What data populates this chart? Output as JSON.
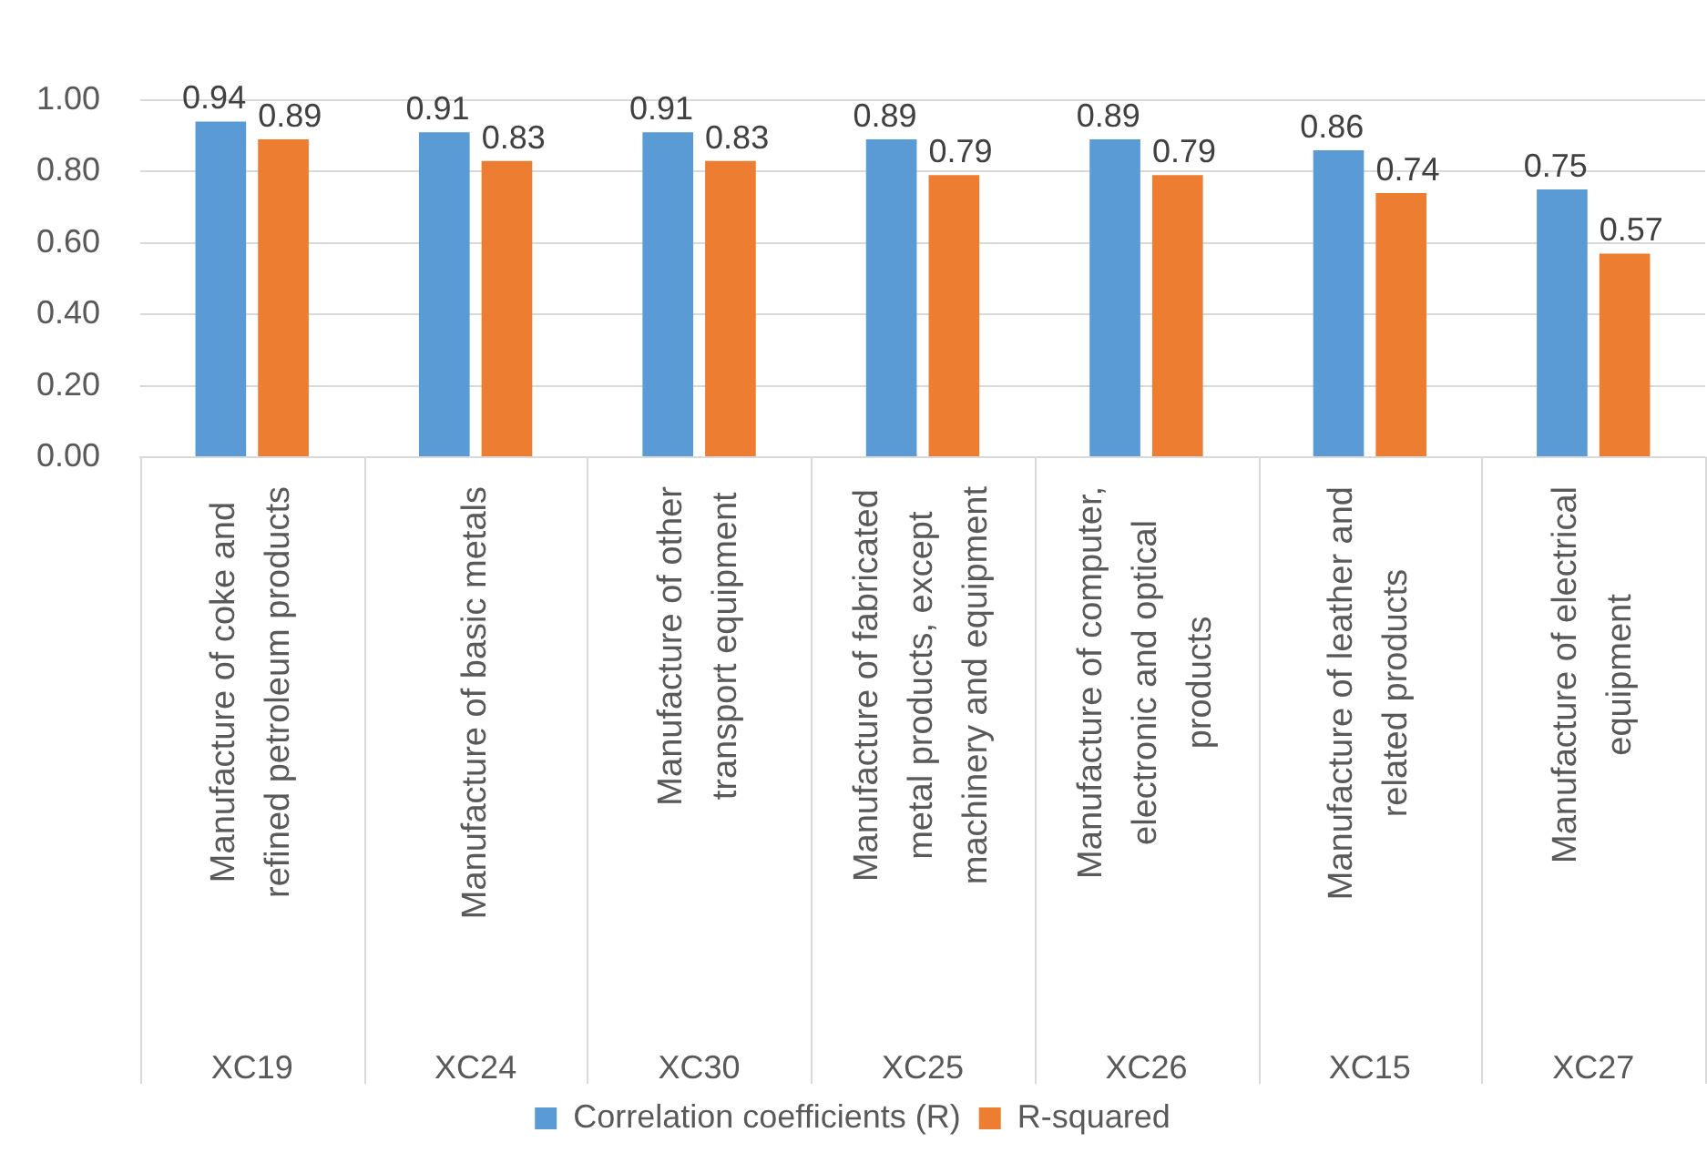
{
  "chart_data": {
    "type": "bar",
    "categories": [
      "Manufacture of coke and refined petroleum products\nXC19",
      "Manufacture of basic metals\nXC24",
      "Manufacture of other transport equipment\nXC30",
      "Manufacture of fabricated metal products, except machinery and equipment\nXC25",
      "Manufacture of computer, electronic and optical products\nXC26",
      "Manufacture of leather and related products\nXC15",
      "Manufacture of electrical equipment\nXC27"
    ],
    "series": [
      {
        "name": "Correlation coefficients (R)",
        "color": "#5b9bd5",
        "values": [
          0.94,
          0.91,
          0.91,
          0.89,
          0.89,
          0.86,
          0.75
        ]
      },
      {
        "name": "R-squared",
        "color": "#ed7d31",
        "values": [
          0.89,
          0.83,
          0.83,
          0.79,
          0.79,
          0.74,
          0.57
        ]
      }
    ],
    "ylim": [
      0,
      1
    ],
    "yticks": [
      {
        "value": 0,
        "label": "0.00"
      },
      {
        "value": 0.2,
        "label": "0.20"
      },
      {
        "value": 0.4,
        "label": "0.40"
      },
      {
        "value": 0.6,
        "label": "0.60"
      },
      {
        "value": 0.8,
        "label": "0.80"
      },
      {
        "value": 1,
        "label": "1.00"
      }
    ],
    "grid": "y",
    "legend": "bottom",
    "data_labels": true
  }
}
